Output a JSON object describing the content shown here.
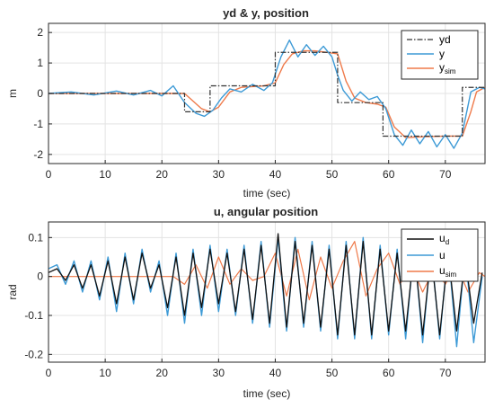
{
  "colors": {
    "yd": "#333333",
    "y": "#3d9ad6",
    "ysim": "#ef7a4a",
    "ud": "#111111",
    "u": "#3d9ad6",
    "usim": "#ef7a4a",
    "grid": "#e3e3e3",
    "axis": "#262626"
  },
  "chart_data": [
    {
      "type": "line",
      "title": "yd & y, position",
      "xlabel": "time (sec)",
      "ylabel": "m",
      "xlim": [
        0,
        77
      ],
      "ylim": [
        -2.3,
        2.3
      ],
      "xticks": [
        0,
        10,
        20,
        30,
        40,
        50,
        60,
        70
      ],
      "yticks": [
        2,
        1,
        0,
        -1,
        -2
      ],
      "grid": true,
      "legend": "top-right",
      "legend_entries": [
        {
          "main": "yd",
          "sub": ""
        },
        {
          "main": "y",
          "sub": ""
        },
        {
          "main": "y",
          "sub": "sim"
        }
      ],
      "series": [
        {
          "name": "yd",
          "style": "dashdot",
          "x": [
            0,
            24,
            24,
            28.5,
            28.5,
            40,
            40,
            51,
            51,
            59,
            59,
            73,
            73,
            77
          ],
          "values": [
            0,
            0,
            -0.6,
            -0.6,
            0.25,
            0.25,
            1.35,
            1.35,
            -0.3,
            -0.3,
            -1.4,
            -1.4,
            0.2,
            0.2
          ]
        },
        {
          "name": "y",
          "x": [
            0,
            4,
            8,
            12,
            15,
            18,
            20,
            22,
            24,
            26,
            27.5,
            29,
            30.5,
            32,
            34,
            36,
            38,
            39.5,
            41,
            42.5,
            44,
            45.5,
            47,
            48.5,
            50,
            51,
            52,
            53.5,
            55,
            56.5,
            58,
            59.5,
            61,
            62.5,
            64,
            65.5,
            67,
            68.5,
            70,
            71.5,
            73,
            74.5,
            76,
            77
          ],
          "values": [
            0,
            0.05,
            -0.05,
            0.08,
            -0.05,
            0.1,
            -0.08,
            0.25,
            -0.3,
            -0.65,
            -0.75,
            -0.55,
            -0.15,
            0.15,
            0.05,
            0.3,
            0.1,
            0.35,
            1.2,
            1.75,
            1.2,
            1.6,
            1.25,
            1.55,
            1.2,
            0.6,
            0.1,
            -0.25,
            0.05,
            -0.2,
            -0.1,
            -0.5,
            -1.35,
            -1.7,
            -1.2,
            -1.65,
            -1.25,
            -1.75,
            -1.35,
            -1.8,
            -1.3,
            0.05,
            0.2,
            0.15
          ]
        },
        {
          "name": "y",
          "x": [
            0,
            10,
            20,
            24,
            25.5,
            27,
            28.5,
            30,
            32,
            34,
            38,
            40,
            41.5,
            43,
            45,
            47,
            49,
            51,
            52.5,
            54,
            56,
            58,
            59.5,
            61,
            63,
            66,
            70,
            73,
            74.5,
            75.5,
            77
          ],
          "values": [
            0,
            0,
            0,
            0,
            -0.25,
            -0.5,
            -0.6,
            -0.45,
            0.05,
            0.2,
            0.25,
            0.35,
            0.95,
            1.3,
            1.4,
            1.4,
            1.35,
            1.3,
            0.4,
            -0.15,
            -0.3,
            -0.35,
            -0.45,
            -1.1,
            -1.45,
            -1.42,
            -1.4,
            -1.4,
            -0.6,
            0.05,
            0.2
          ]
        }
      ]
    },
    {
      "type": "line",
      "title": "u, angular position",
      "xlabel": "time (sec)",
      "ylabel": "rad",
      "xlim": [
        0,
        77
      ],
      "ylim": [
        -0.22,
        0.14
      ],
      "xticks": [
        0,
        10,
        20,
        30,
        40,
        50,
        60,
        70
      ],
      "yticks": [
        0.1,
        0,
        -0.1,
        -0.2
      ],
      "grid": true,
      "legend": "top-right",
      "legend_entries": [
        {
          "main": "u",
          "sub": "d"
        },
        {
          "main": "u",
          "sub": ""
        },
        {
          "main": "u",
          "sub": "sim"
        }
      ],
      "series": [
        {
          "name": "u",
          "x": [
            0,
            1.5,
            3,
            4.5,
            6,
            7.5,
            9,
            10.5,
            12,
            13.5,
            15,
            16.5,
            18,
            19.5,
            21,
            22.5,
            24,
            25.5,
            27,
            28.5,
            30,
            31.5,
            33,
            34.5,
            36,
            37.5,
            39,
            40.5,
            42,
            43.5,
            45,
            46.5,
            48,
            49.5,
            51,
            52.5,
            54,
            55.5,
            57,
            58.5,
            60,
            61.5,
            63,
            64.5,
            66,
            67.5,
            69,
            70.5,
            72,
            73.5,
            75,
            76.5
          ],
          "values": [
            0.01,
            0.02,
            -0.01,
            0.03,
            -0.03,
            0.03,
            -0.05,
            0.04,
            -0.07,
            0.05,
            -0.06,
            0.06,
            -0.03,
            0.03,
            -0.08,
            0.05,
            -0.1,
            0.06,
            -0.08,
            0.07,
            -0.07,
            0.06,
            -0.09,
            0.07,
            -0.11,
            0.08,
            -0.12,
            0.11,
            -0.13,
            0.09,
            -0.12,
            0.08,
            -0.13,
            0.07,
            -0.15,
            0.08,
            -0.15,
            0.09,
            -0.15,
            0.07,
            -0.14,
            0.06,
            -0.14,
            0.07,
            -0.15,
            0.06,
            -0.15,
            0.06,
            -0.14,
            0.05,
            -0.12,
            0.01
          ]
        },
        {
          "name": "u",
          "x": [
            0,
            1.5,
            3,
            4.5,
            6,
            7.5,
            9,
            10.5,
            12,
            13.5,
            15,
            16.5,
            18,
            19.5,
            21,
            22.5,
            24,
            25.5,
            27,
            28.5,
            30,
            31.5,
            33,
            34.5,
            36,
            37.5,
            39,
            40.5,
            42,
            43.5,
            45,
            46.5,
            48,
            49.5,
            51,
            52.5,
            54,
            55.5,
            57,
            58.5,
            60,
            61.5,
            63,
            64.5,
            66,
            67.5,
            69,
            70.5,
            72,
            73.5,
            75,
            76.5
          ],
          "values": [
            0.02,
            0.03,
            -0.02,
            0.04,
            -0.04,
            0.04,
            -0.06,
            0.05,
            -0.09,
            0.06,
            -0.07,
            0.07,
            -0.04,
            0.04,
            -0.1,
            0.06,
            -0.12,
            0.07,
            -0.1,
            0.08,
            -0.09,
            0.07,
            -0.1,
            0.08,
            -0.12,
            0.09,
            -0.13,
            0.1,
            -0.14,
            0.1,
            -0.13,
            0.09,
            -0.14,
            0.08,
            -0.16,
            0.09,
            -0.16,
            0.1,
            -0.16,
            0.08,
            -0.15,
            0.07,
            -0.16,
            0.08,
            -0.17,
            0.07,
            -0.16,
            0.07,
            -0.18,
            0.06,
            -0.17,
            0.0
          ]
        },
        {
          "name": "u",
          "x": [
            0,
            5,
            10,
            15,
            20,
            22,
            24,
            26,
            28,
            30,
            32,
            34,
            36,
            38,
            40,
            42,
            44,
            46,
            48,
            50,
            52,
            54,
            56,
            58,
            60,
            62,
            64,
            66,
            68,
            70,
            72,
            74,
            76,
            77
          ],
          "values": [
            0,
            0,
            0,
            0,
            0,
            0,
            -0.02,
            0.03,
            -0.03,
            0.05,
            -0.02,
            0.02,
            -0.01,
            0.0,
            0.06,
            -0.05,
            0.07,
            -0.06,
            0.05,
            -0.03,
            0.04,
            0.09,
            -0.05,
            0.02,
            0.06,
            -0.02,
            0.03,
            -0.04,
            0.02,
            -0.02,
            0.03,
            -0.04,
            0.01,
            0.0
          ]
        }
      ]
    }
  ]
}
